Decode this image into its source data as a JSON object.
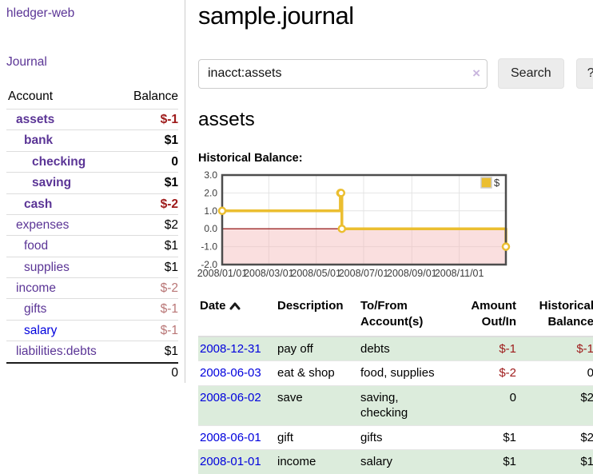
{
  "colors": {
    "accent_purple": "#5b3596",
    "link_blue": "#0000dd",
    "negative_strong": "#9e1a1a",
    "negative_muted": "#b97676",
    "row_stripe_green": "#dcecdc",
    "chart_line_gold": "#ebbe30"
  },
  "sidebar": {
    "app_title": "hledger-web",
    "journal_link": "Journal",
    "account_header": "Account",
    "balance_header": "Balance",
    "rows": [
      {
        "name": "assets",
        "depth": 1,
        "bold": true,
        "balance": "$-1",
        "neg": "strong"
      },
      {
        "name": "bank",
        "depth": 2,
        "bold": true,
        "balance": "$1"
      },
      {
        "name": "checking",
        "depth": 3,
        "bold": true,
        "balance": "0"
      },
      {
        "name": "saving",
        "depth": 3,
        "bold": true,
        "balance": "$1"
      },
      {
        "name": "cash",
        "depth": 2,
        "bold": true,
        "balance": "$-2",
        "neg": "strong"
      },
      {
        "name": "expenses",
        "depth": 1,
        "bold": false,
        "balance": "$2"
      },
      {
        "name": "food",
        "depth": 2,
        "bold": false,
        "balance": "$1"
      },
      {
        "name": "supplies",
        "depth": 2,
        "bold": false,
        "balance": "$1"
      },
      {
        "name": "income",
        "depth": 1,
        "bold": false,
        "balance": "$-2",
        "neg": "muted"
      },
      {
        "name": "gifts",
        "depth": 2,
        "bold": false,
        "balance": "$-1",
        "neg": "muted"
      },
      {
        "name": "salary",
        "depth": 2,
        "bold": false,
        "balance": "$-1",
        "neg": "muted",
        "unvisited": true
      },
      {
        "name": "liabilities:debts",
        "depth": 1,
        "bold": false,
        "balance": "$1"
      }
    ],
    "total": "0"
  },
  "main": {
    "title": "sample.journal",
    "search": {
      "value": "inacct:assets",
      "clear_icon": "×",
      "search_button": "Search",
      "help_button": "?"
    },
    "account_heading": "assets",
    "chart_title": "Historical Balance:"
  },
  "chart_data": {
    "type": "line",
    "step": true,
    "title": "Historical Balance",
    "series": [
      {
        "name": "$",
        "color": "#ebbe30",
        "points": [
          [
            "2008-01-01",
            1
          ],
          [
            "2008-06-01",
            2
          ],
          [
            "2008-06-02",
            2
          ],
          [
            "2008-06-03",
            0
          ],
          [
            "2008-12-31",
            -1
          ]
        ]
      }
    ],
    "xlim": [
      "2008-01-01",
      "2008-12-31"
    ],
    "ylim": [
      -2,
      3
    ],
    "y_ticks": [
      {
        "v": 3,
        "label": "3.0"
      },
      {
        "v": 2,
        "label": "2.0"
      },
      {
        "v": 1,
        "label": "1.0"
      },
      {
        "v": 0,
        "label": "0.0"
      },
      {
        "v": -1,
        "label": "-1.0"
      },
      {
        "v": -2,
        "label": "-2.0"
      }
    ],
    "x_ticks": [
      {
        "date": "2008-01-01",
        "label": "2008/01/01"
      },
      {
        "date": "2008-03-01",
        "label": "2008/03/01"
      },
      {
        "date": "2008-05-01",
        "label": "2008/05/01"
      },
      {
        "date": "2008-07-01",
        "label": "2008/07/01"
      },
      {
        "date": "2008-09-01",
        "label": "2008/09/01"
      },
      {
        "date": "2008-11-01",
        "label": "2008/11/01"
      }
    ],
    "grid_on": true,
    "grid_color": "#e4e4e4",
    "border_color": "#4d4d4d",
    "zero_line_color": "#8b0000",
    "negative_region_fill": "#f5b8b8",
    "legend": {
      "position": "top-right",
      "label": "$"
    }
  },
  "register": {
    "headers": {
      "date": "Date",
      "description": "Description",
      "accounts": "To/From Account(s)",
      "amount": "Amount Out/In",
      "balance": "Historical Balance"
    },
    "rows": [
      {
        "date": "2008-12-31",
        "description": "pay off",
        "accounts": "debts",
        "amount": "$-1",
        "amount_neg": true,
        "balance": "$-1",
        "balance_neg": true
      },
      {
        "date": "2008-06-03",
        "description": "eat & shop",
        "accounts": "food, supplies",
        "amount": "$-2",
        "amount_neg": true,
        "balance": "0",
        "balance_neg": false
      },
      {
        "date": "2008-06-02",
        "description": "save",
        "accounts": "saving, checking",
        "amount": "0",
        "amount_neg": false,
        "balance": "$2",
        "balance_neg": false
      },
      {
        "date": "2008-06-01",
        "description": "gift",
        "accounts": "gifts",
        "amount": "$1",
        "amount_neg": false,
        "balance": "$2",
        "balance_neg": false
      },
      {
        "date": "2008-01-01",
        "description": "income",
        "accounts": "salary",
        "amount": "$1",
        "amount_neg": false,
        "balance": "$1",
        "balance_neg": false
      }
    ]
  }
}
